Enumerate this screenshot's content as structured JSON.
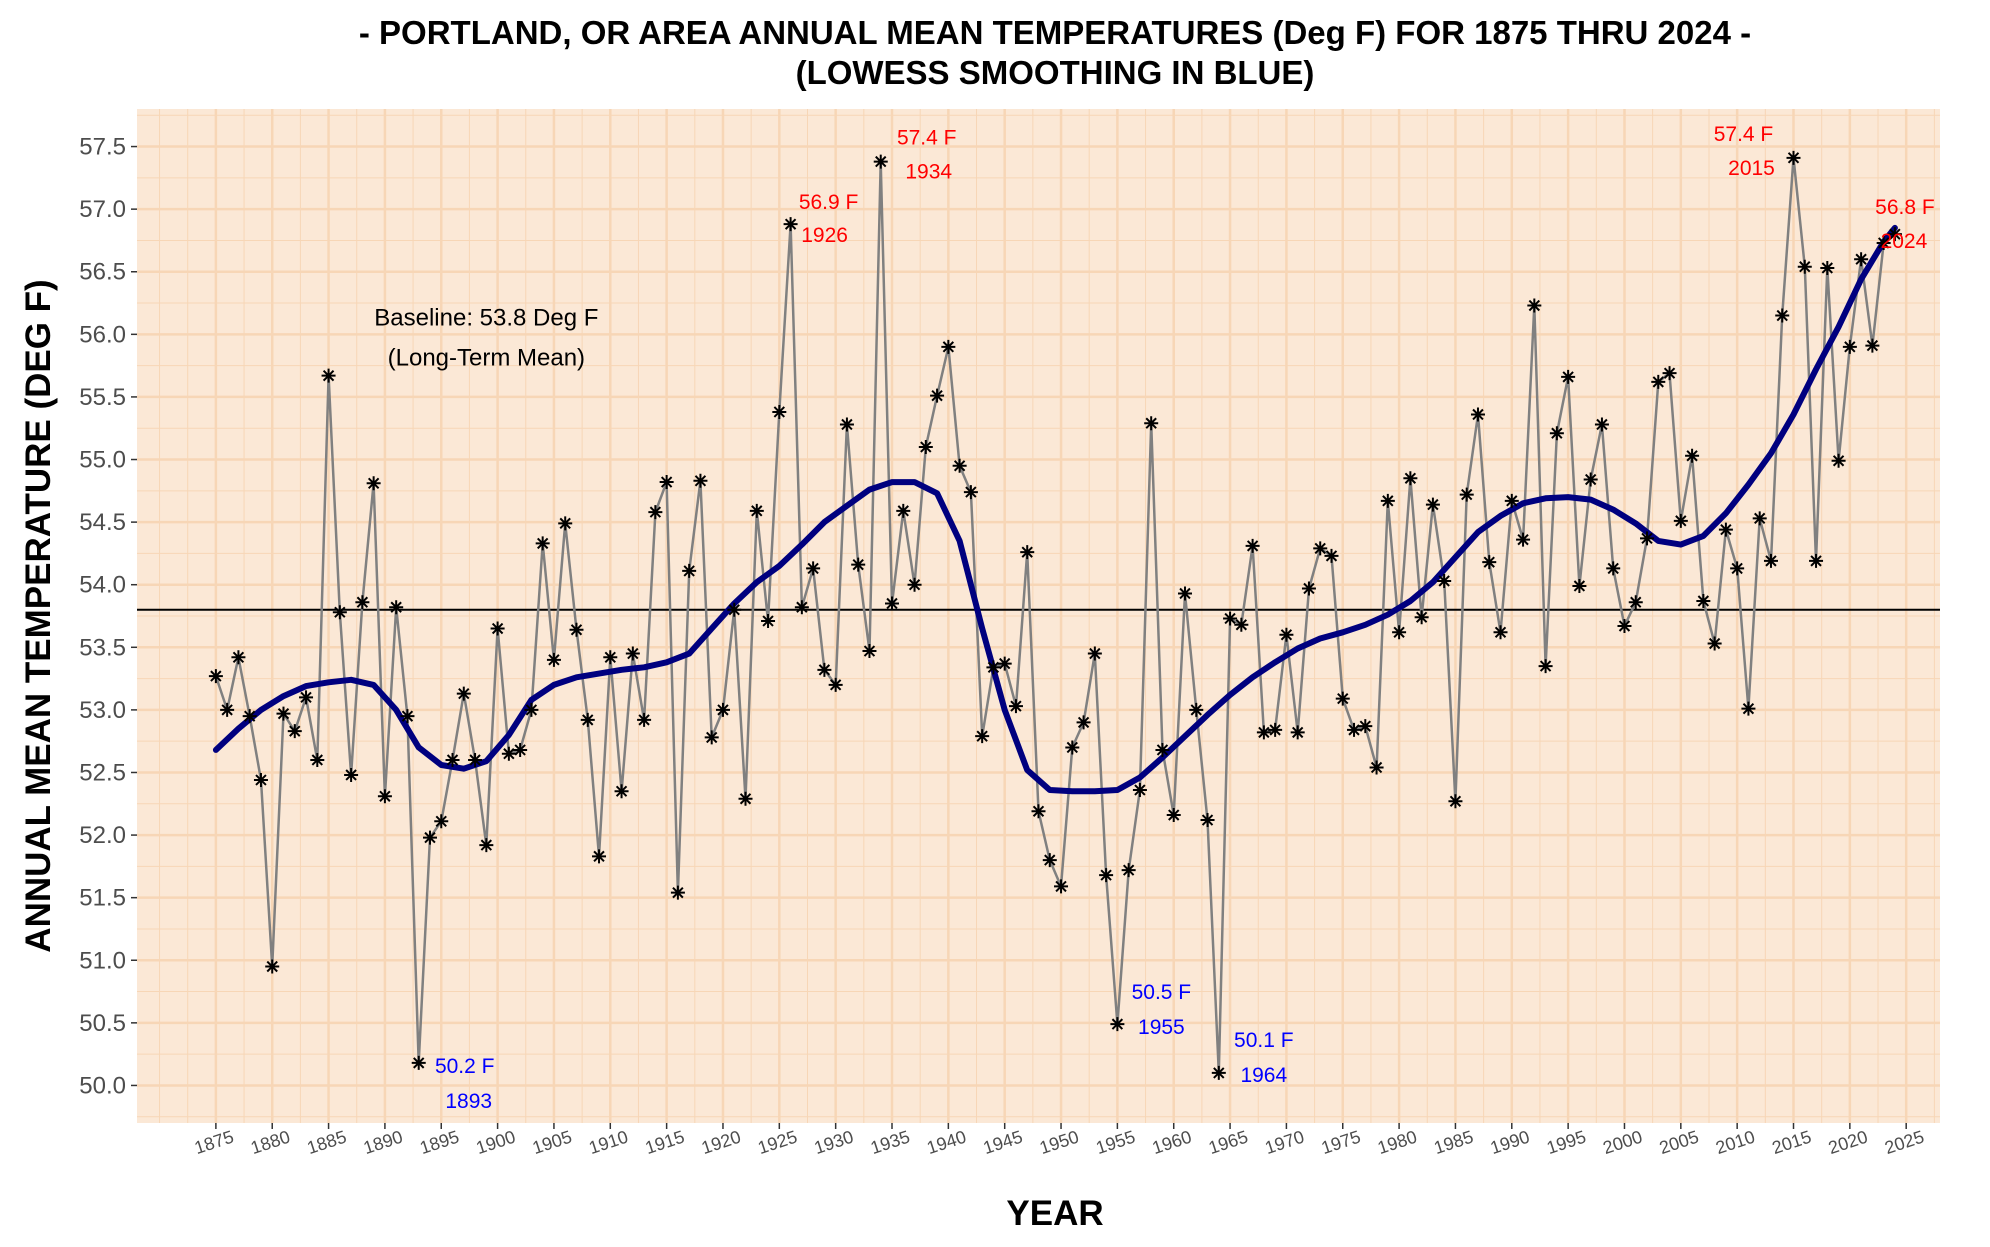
{
  "chart_data": {
    "type": "line",
    "title_line1": "- PORTLAND, OR AREA ANNUAL MEAN TEMPERATURES (Deg F) FOR 1875 THRU 2024 -",
    "title_line2": "(LOWESS SMOOTHING IN BLUE)",
    "xlabel": "YEAR",
    "ylabel": "ANNUAL MEAN TEMPERATURE (DEG F)",
    "xlim": [
      1868,
      2028
    ],
    "ylim": [
      49.7,
      57.8
    ],
    "xticks": [
      1875,
      1880,
      1885,
      1890,
      1895,
      1900,
      1905,
      1910,
      1915,
      1920,
      1925,
      1930,
      1935,
      1940,
      1945,
      1950,
      1955,
      1960,
      1965,
      1970,
      1975,
      1980,
      1985,
      1990,
      1995,
      2000,
      2005,
      2010,
      2015,
      2020,
      2025
    ],
    "yticks": [
      50.0,
      50.5,
      51.0,
      51.5,
      52.0,
      52.5,
      53.0,
      53.5,
      54.0,
      54.5,
      55.0,
      55.5,
      56.0,
      56.5,
      57.0,
      57.5
    ],
    "ytick_labels": [
      "50.0",
      "50.5",
      "51.0",
      "51.5",
      "52.0",
      "52.5",
      "53.0",
      "53.5",
      "54.0",
      "54.5",
      "55.0",
      "55.5",
      "56.0",
      "56.5",
      "57.0",
      "57.5"
    ],
    "grid": true,
    "colors": {
      "panel": "#fbe8d6",
      "grid": "#f7d6b6",
      "series": "#808080",
      "smooth": "#00007f",
      "high": "#ff0000",
      "low": "#0000ff",
      "baseline": "#000000"
    },
    "baseline": {
      "value": 53.8,
      "label_line1": "Baseline: 53.8 Deg F",
      "label_line2": "(Long-Term Mean)"
    },
    "series": [
      {
        "name": "Annual Mean",
        "x": [
          1875,
          1876,
          1877,
          1878,
          1879,
          1880,
          1881,
          1882,
          1883,
          1884,
          1885,
          1886,
          1887,
          1888,
          1889,
          1890,
          1891,
          1892,
          1893,
          1894,
          1895,
          1896,
          1897,
          1898,
          1899,
          1900,
          1901,
          1902,
          1903,
          1904,
          1905,
          1906,
          1907,
          1908,
          1909,
          1910,
          1911,
          1912,
          1913,
          1914,
          1915,
          1916,
          1917,
          1918,
          1919,
          1920,
          1921,
          1922,
          1923,
          1924,
          1925,
          1926,
          1927,
          1928,
          1929,
          1930,
          1931,
          1932,
          1933,
          1934,
          1935,
          1936,
          1937,
          1938,
          1939,
          1940,
          1941,
          1942,
          1943,
          1944,
          1945,
          1946,
          1947,
          1948,
          1949,
          1950,
          1951,
          1952,
          1953,
          1954,
          1955,
          1956,
          1957,
          1958,
          1959,
          1960,
          1961,
          1962,
          1963,
          1964,
          1965,
          1966,
          1967,
          1968,
          1969,
          1970,
          1971,
          1972,
          1973,
          1974,
          1975,
          1976,
          1977,
          1978,
          1979,
          1980,
          1981,
          1982,
          1983,
          1984,
          1985,
          1986,
          1987,
          1988,
          1989,
          1990,
          1991,
          1992,
          1993,
          1994,
          1995,
          1996,
          1997,
          1998,
          1999,
          2000,
          2001,
          2002,
          2003,
          2004,
          2005,
          2006,
          2007,
          2008,
          2009,
          2010,
          2011,
          2012,
          2013,
          2014,
          2015,
          2016,
          2017,
          2018,
          2019,
          2020,
          2021,
          2022,
          2023,
          2024
        ],
        "values": [
          53.27,
          53.0,
          53.42,
          52.95,
          52.44,
          50.95,
          52.97,
          52.83,
          53.1,
          52.6,
          55.67,
          53.78,
          52.48,
          53.86,
          54.81,
          52.31,
          53.82,
          52.95,
          50.18,
          51.98,
          52.11,
          52.6,
          53.13,
          52.6,
          51.92,
          53.65,
          52.65,
          52.68,
          53.0,
          54.33,
          53.4,
          54.49,
          53.64,
          52.92,
          51.83,
          53.42,
          52.35,
          53.45,
          52.92,
          54.58,
          54.82,
          51.54,
          54.11,
          54.83,
          52.78,
          53.0,
          53.8,
          52.29,
          54.59,
          53.71,
          55.38,
          56.88,
          53.82,
          54.13,
          53.32,
          53.2,
          55.28,
          54.16,
          53.47,
          57.38,
          53.85,
          54.59,
          54.0,
          55.1,
          55.51,
          55.9,
          54.95,
          54.74,
          52.79,
          53.34,
          53.37,
          53.03,
          54.26,
          52.19,
          51.8,
          51.59,
          52.7,
          52.9,
          53.45,
          51.68,
          50.49,
          51.72,
          52.36,
          55.29,
          52.68,
          52.16,
          53.93,
          53.0,
          52.12,
          50.1,
          53.73,
          53.68,
          54.31,
          52.82,
          52.84,
          53.6,
          52.82,
          53.97,
          54.29,
          54.23,
          53.09,
          52.84,
          52.87,
          52.54,
          54.67,
          53.62,
          54.85,
          53.74,
          54.64,
          54.03,
          52.27,
          54.72,
          55.36,
          54.18,
          53.62,
          54.67,
          54.36,
          56.23,
          53.35,
          55.21,
          55.66,
          53.99,
          54.84,
          55.28,
          54.13,
          53.67,
          53.86,
          54.37,
          55.62,
          55.69,
          54.51,
          55.03,
          53.87,
          53.53,
          54.44,
          54.13,
          53.01,
          54.53,
          54.19,
          56.15,
          57.41,
          56.54,
          54.19,
          56.53,
          54.99,
          55.9,
          56.6,
          55.91,
          56.73,
          56.8
        ]
      },
      {
        "name": "LOWESS",
        "x": [
          1875,
          1877,
          1879,
          1881,
          1883,
          1885,
          1887,
          1889,
          1891,
          1893,
          1895,
          1897,
          1899,
          1901,
          1903,
          1905,
          1907,
          1909,
          1911,
          1913,
          1915,
          1917,
          1919,
          1921,
          1923,
          1925,
          1927,
          1929,
          1931,
          1933,
          1935,
          1937,
          1939,
          1941,
          1943,
          1945,
          1947,
          1949,
          1951,
          1953,
          1955,
          1957,
          1959,
          1961,
          1963,
          1965,
          1967,
          1969,
          1971,
          1973,
          1975,
          1977,
          1979,
          1981,
          1983,
          1985,
          1987,
          1989,
          1991,
          1993,
          1995,
          1997,
          1999,
          2001,
          2003,
          2005,
          2007,
          2009,
          2011,
          2013,
          2015,
          2017,
          2019,
          2021,
          2023,
          2024
        ],
        "values": [
          52.68,
          52.85,
          53.0,
          53.11,
          53.19,
          53.22,
          53.24,
          53.2,
          53.0,
          52.7,
          52.56,
          52.53,
          52.59,
          52.8,
          53.08,
          53.2,
          53.26,
          53.29,
          53.32,
          53.34,
          53.38,
          53.45,
          53.65,
          53.85,
          54.02,
          54.15,
          54.32,
          54.5,
          54.63,
          54.76,
          54.82,
          54.82,
          54.73,
          54.35,
          53.65,
          53.0,
          52.52,
          52.36,
          52.35,
          52.35,
          52.36,
          52.46,
          52.62,
          52.79,
          52.96,
          53.12,
          53.26,
          53.38,
          53.49,
          53.57,
          53.62,
          53.68,
          53.76,
          53.87,
          54.02,
          54.22,
          54.42,
          54.55,
          54.65,
          54.69,
          54.7,
          54.68,
          54.6,
          54.49,
          54.35,
          54.32,
          54.39,
          54.57,
          54.8,
          55.05,
          55.36,
          55.72,
          56.06,
          56.44,
          56.74,
          56.85
        ]
      }
    ],
    "annotations": [
      {
        "kind": "high",
        "x": 1926,
        "y": 56.88,
        "value_label": "56.9 F",
        "year_label": "1926"
      },
      {
        "kind": "high",
        "x": 1934,
        "y": 57.38,
        "value_label": "57.4 F",
        "year_label": "1934"
      },
      {
        "kind": "high",
        "x": 2015,
        "y": 57.41,
        "value_label": "57.4 F",
        "year_label": "2015"
      },
      {
        "kind": "high",
        "x": 2024,
        "y": 56.8,
        "value_label": "56.8 F",
        "year_label": "2024"
      },
      {
        "kind": "low",
        "x": 1893,
        "y": 50.18,
        "value_label": "50.2 F",
        "year_label": "1893"
      },
      {
        "kind": "low",
        "x": 1955,
        "y": 50.49,
        "value_label": "50.5 F",
        "year_label": "1955"
      },
      {
        "kind": "low",
        "x": 1964,
        "y": 50.1,
        "value_label": "50.1 F",
        "year_label": "1964"
      }
    ]
  }
}
